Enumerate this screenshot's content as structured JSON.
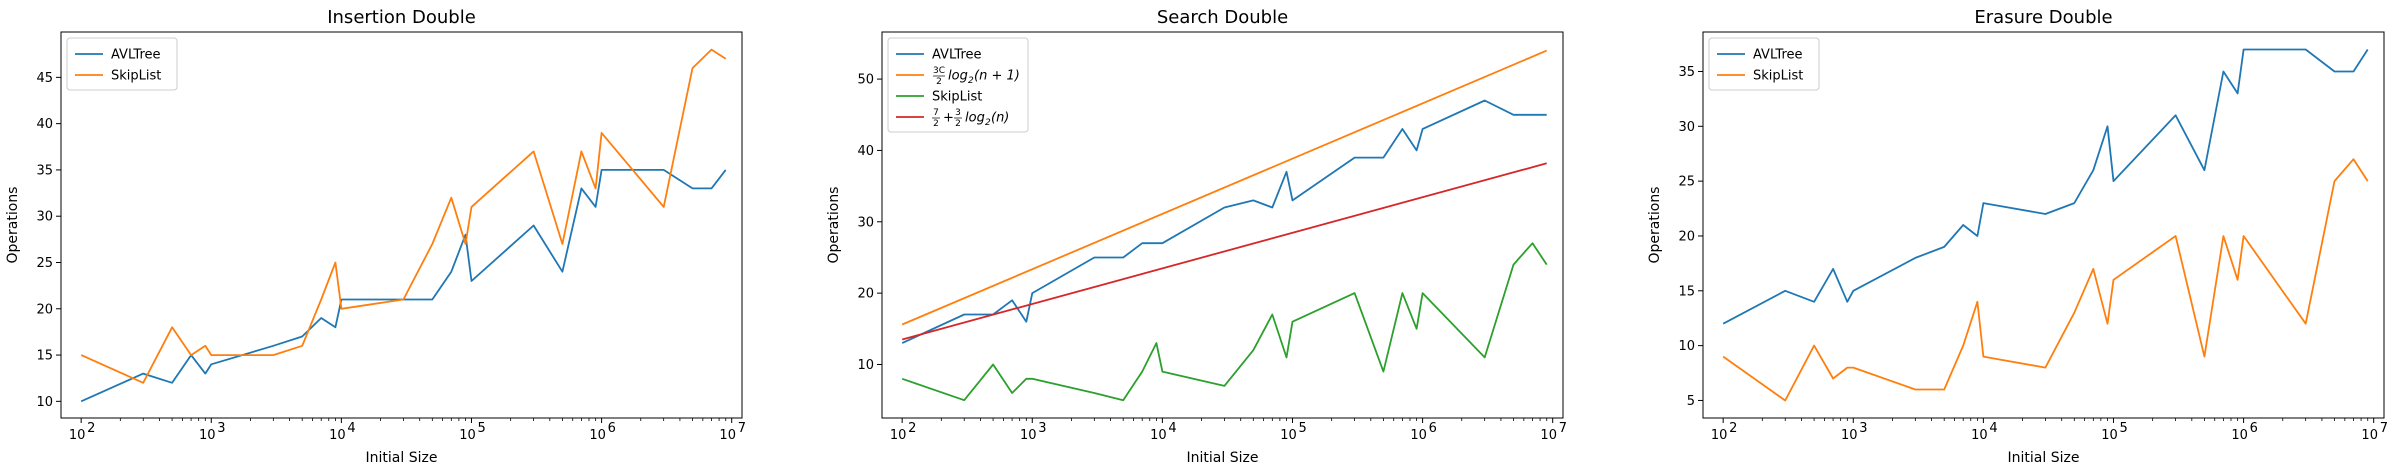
{
  "colors": {
    "blue": "#1f77b4",
    "orange": "#ff7f0e",
    "green": "#2ca02c",
    "red": "#d62728"
  },
  "chart_data": [
    {
      "type": "line",
      "title": "Insertion Double",
      "xlabel": "Initial Size",
      "ylabel": "Operations",
      "xscale": "log",
      "xlim": [
        70,
        12000000
      ],
      "ylim": [
        8.2,
        49.9
      ],
      "yticks": [
        10,
        15,
        20,
        25,
        30,
        35,
        40,
        45
      ],
      "grid": false,
      "legend_position": "top-left",
      "series": [
        {
          "name": "AVLTree",
          "color": "#1f77b4",
          "x": [
            100,
            300,
            500,
            700,
            900,
            1000,
            3000,
            5000,
            7000,
            9000,
            10000,
            30000,
            50000,
            70000,
            90000,
            100000,
            300000,
            500000,
            700000,
            900000,
            1000000,
            3000000,
            5000000,
            7000000,
            9000000
          ],
          "y": [
            10,
            13,
            12,
            15,
            13,
            14,
            16,
            17,
            19,
            18,
            21,
            21,
            21,
            24,
            28,
            23,
            29,
            24,
            33,
            31,
            35,
            35,
            33,
            33,
            35
          ]
        },
        {
          "name": "SkipList",
          "color": "#ff7f0e",
          "x": [
            100,
            300,
            500,
            700,
            900,
            1000,
            3000,
            5000,
            7000,
            9000,
            10000,
            30000,
            50000,
            70000,
            90000,
            100000,
            300000,
            500000,
            700000,
            900000,
            1000000,
            3000000,
            5000000,
            7000000,
            9000000
          ],
          "y": [
            15,
            12,
            18,
            15,
            16,
            15,
            15,
            16,
            21,
            25,
            20,
            21,
            27,
            32,
            27,
            31,
            37,
            27,
            37,
            33,
            39,
            31,
            46,
            48,
            47
          ]
        }
      ]
    },
    {
      "type": "line",
      "title": "Search Double",
      "xlabel": "Initial Size",
      "ylabel": "Operations",
      "xscale": "log",
      "xlim": [
        70,
        12000000
      ],
      "ylim": [
        2.5,
        56.6
      ],
      "yticks": [
        10,
        20,
        30,
        40,
        50
      ],
      "grid": false,
      "legend_position": "top-left",
      "series": [
        {
          "name": "AVLTree",
          "color": "#1f77b4",
          "x": [
            100,
            300,
            500,
            700,
            900,
            1000,
            3000,
            5000,
            7000,
            9000,
            10000,
            30000,
            50000,
            70000,
            90000,
            100000,
            300000,
            500000,
            700000,
            900000,
            1000000,
            3000000,
            5000000,
            7000000,
            9000000
          ],
          "y": [
            13,
            17,
            17,
            19,
            16,
            20,
            25,
            25,
            27,
            27,
            27,
            32,
            33,
            32,
            37,
            33,
            39,
            39,
            43,
            40,
            43,
            47,
            45,
            45,
            45
          ]
        },
        {
          "name": "3C/2 log2(n + 1)",
          "color": "#ff7f0e",
          "legend_main": "log",
          "legend_sub": "2",
          "legend_tail": "(n + 1)",
          "legend_frac_num": "3C",
          "legend_frac_den": "2",
          "x": [
            100,
            9000000
          ],
          "y": [
            15.6,
            54.0
          ]
        },
        {
          "name": "SkipList",
          "color": "#2ca02c",
          "x": [
            100,
            300,
            500,
            700,
            900,
            1000,
            3000,
            5000,
            7000,
            9000,
            10000,
            30000,
            50000,
            70000,
            90000,
            100000,
            300000,
            500000,
            700000,
            900000,
            1000000,
            3000000,
            5000000,
            7000000,
            9000000
          ],
          "y": [
            8,
            5,
            10,
            6,
            8,
            8,
            6,
            5,
            9,
            13,
            9,
            7,
            12,
            17,
            11,
            16,
            20,
            9,
            20,
            15,
            20,
            11,
            24,
            27,
            24
          ]
        },
        {
          "name": "7/2 + 3/2 log2(n)",
          "color": "#d62728",
          "legend_frac1_num": "7",
          "legend_frac1_den": "2",
          "legend_plus": "+",
          "legend_frac2_num": "3",
          "legend_frac2_den": "2",
          "legend_main": "log",
          "legend_sub": "2",
          "legend_tail": "(n)",
          "x": [
            100,
            9000000
          ],
          "y": [
            13.5,
            38.2
          ]
        }
      ]
    },
    {
      "type": "line",
      "title": "Erasure Double",
      "xlabel": "Initial Size",
      "ylabel": "Operations",
      "xscale": "log",
      "xlim": [
        70,
        12000000
      ],
      "ylim": [
        3.4,
        38.6
      ],
      "yticks": [
        5,
        10,
        15,
        20,
        25,
        30,
        35
      ],
      "grid": false,
      "legend_position": "top-left",
      "series": [
        {
          "name": "AVLTree",
          "color": "#1f77b4",
          "x": [
            100,
            300,
            500,
            700,
            900,
            1000,
            3000,
            5000,
            7000,
            9000,
            10000,
            30000,
            50000,
            70000,
            90000,
            100000,
            300000,
            500000,
            700000,
            900000,
            1000000,
            3000000,
            5000000,
            7000000,
            9000000
          ],
          "y": [
            12,
            15,
            14,
            17,
            14,
            15,
            18,
            19,
            21,
            20,
            23,
            22,
            23,
            26,
            30,
            25,
            31,
            26,
            35,
            33,
            37,
            37,
            35,
            35,
            37
          ]
        },
        {
          "name": "SkipList",
          "color": "#ff7f0e",
          "x": [
            100,
            300,
            500,
            700,
            900,
            1000,
            3000,
            5000,
            7000,
            9000,
            10000,
            30000,
            50000,
            70000,
            90000,
            100000,
            300000,
            500000,
            700000,
            900000,
            1000000,
            3000000,
            5000000,
            7000000,
            9000000
          ],
          "y": [
            9,
            5,
            10,
            7,
            8,
            8,
            6,
            6,
            10,
            14,
            9,
            8,
            13,
            17,
            12,
            16,
            20,
            9,
            20,
            16,
            20,
            12,
            25,
            27,
            25
          ]
        }
      ]
    }
  ]
}
